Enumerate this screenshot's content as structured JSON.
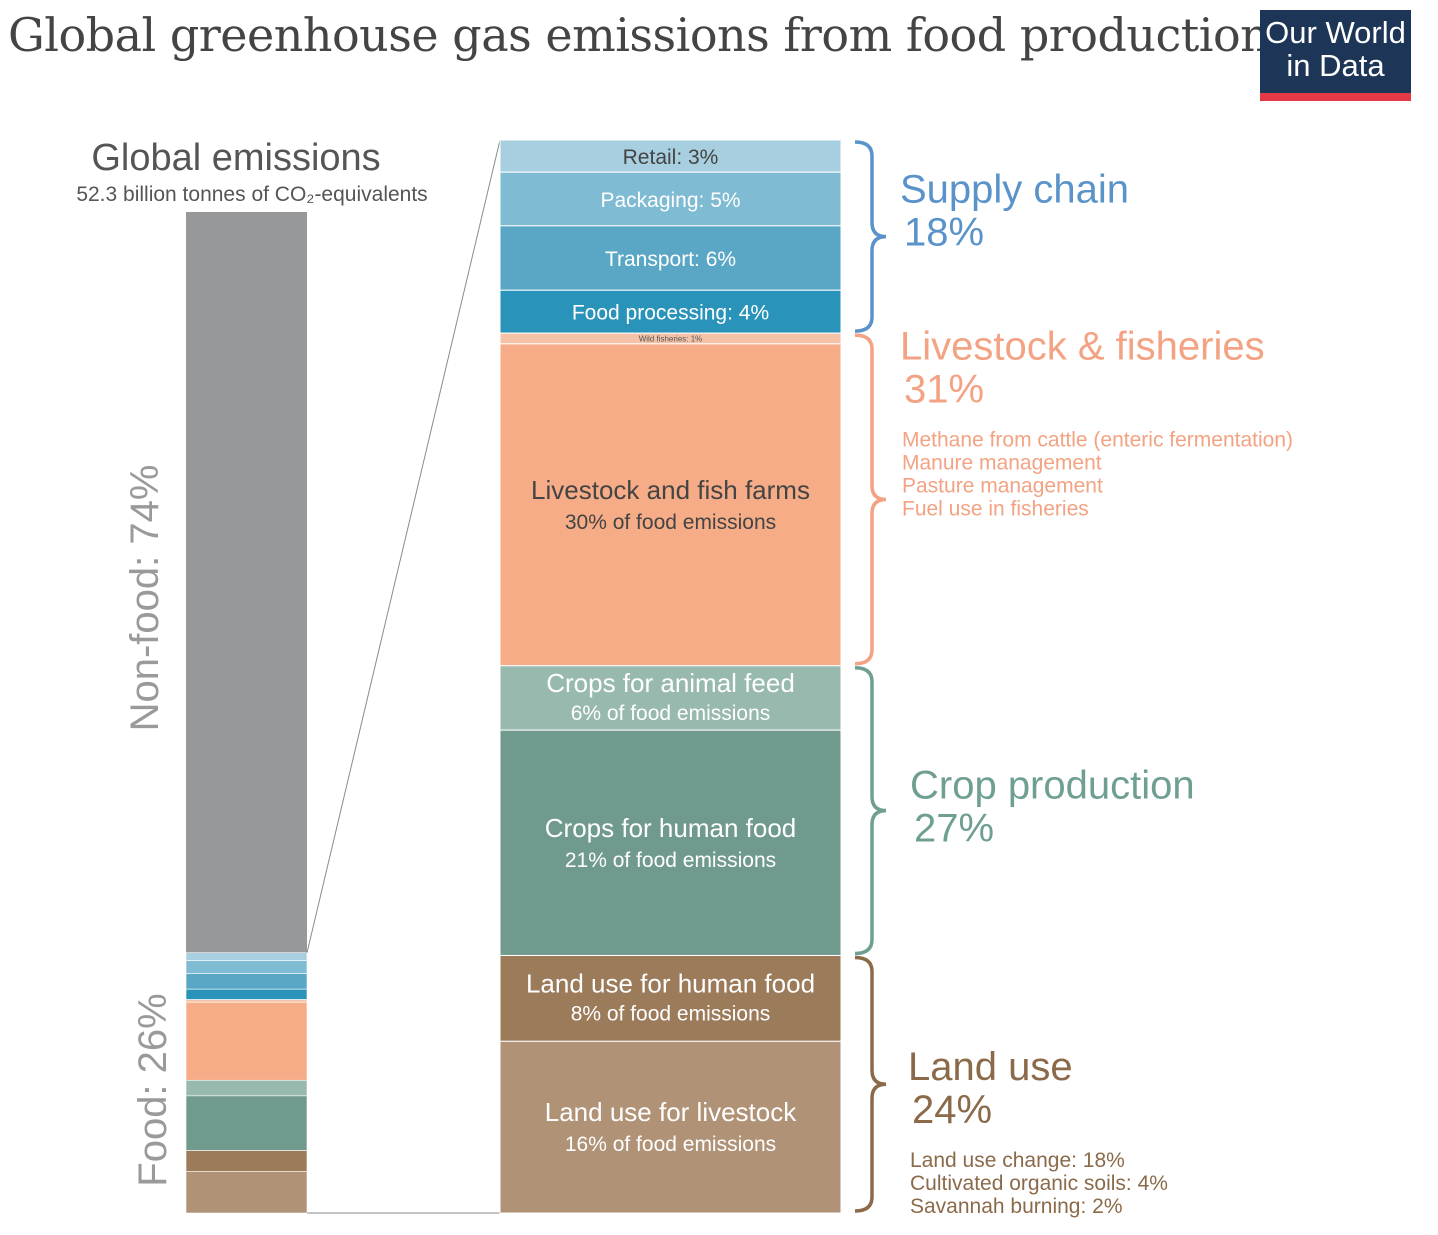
{
  "title": "Global greenhouse gas emissions from food production",
  "logo": {
    "line1": "Our World",
    "line2": "in Data"
  },
  "chart_data": {
    "type": "bar",
    "title": "Global greenhouse gas emissions from food production",
    "global": {
      "heading": "Global emissions",
      "subheading": "52.3 billion tonnes of CO₂-equivalents",
      "nonfood_label": "Non-food: 74%",
      "food_label": "Food: 26%",
      "nonfood_value": 74,
      "food_value": 26
    },
    "segments": [
      {
        "label": "Retail: 3%",
        "sub": "",
        "value": 3,
        "color": "#a8cfe0",
        "text_color": "#444444"
      },
      {
        "label": "Packaging: 5%",
        "sub": "",
        "value": 5,
        "color": "#7fbbd3",
        "text_color": "#ffffff"
      },
      {
        "label": "Transport: 6%",
        "sub": "",
        "value": 6,
        "color": "#5aa6c5",
        "text_color": "#ffffff"
      },
      {
        "label": "Food processing: 4%",
        "sub": "",
        "value": 4,
        "color": "#2a93b9",
        "text_color": "#ffffff"
      },
      {
        "label": "Wild fisheries: 1%",
        "sub": "",
        "value": 1,
        "color": "#f4c2a6",
        "text_color": "#555555"
      },
      {
        "label": "Livestock and fish farms",
        "sub": "30% of food emissions",
        "value": 30,
        "color": "#f5ac87",
        "text_color": "#444444"
      },
      {
        "label": "Crops for animal feed",
        "sub": "6% of food emissions",
        "value": 6,
        "color": "#98b9ae",
        "text_color": "#ffffff"
      },
      {
        "label": "Crops for human food",
        "sub": "21% of food emissions",
        "value": 21,
        "color": "#719a8f",
        "text_color": "#ffffff"
      },
      {
        "label": "Land use for human food",
        "sub": "8% of food emissions",
        "value": 8,
        "color": "#9c7b5b",
        "text_color": "#ffffff"
      },
      {
        "label": "Land use for livestock",
        "sub": "16% of food emissions",
        "value": 16,
        "color": "#b09276",
        "text_color": "#ffffff"
      }
    ],
    "groups": [
      {
        "name": "Supply chain",
        "pct": "18%",
        "value": 18,
        "color": "#5a93c9",
        "details": []
      },
      {
        "name": "Livestock & fisheries",
        "pct": "31%",
        "value": 31,
        "color": "#f3a383",
        "details": [
          "Methane from cattle (enteric fermentation)",
          "Manure management",
          "Pasture management",
          "Fuel use in fisheries"
        ]
      },
      {
        "name": "Crop production",
        "pct": "27%",
        "value": 27,
        "color": "#6f9f92",
        "details": []
      },
      {
        "name": "Land use",
        "pct": "24%",
        "value": 24,
        "color": "#8b6a4a",
        "details": [
          "Land use change: 18%",
          "Cultivated organic soils: 4%",
          "Savannah burning: 2%"
        ]
      }
    ]
  }
}
